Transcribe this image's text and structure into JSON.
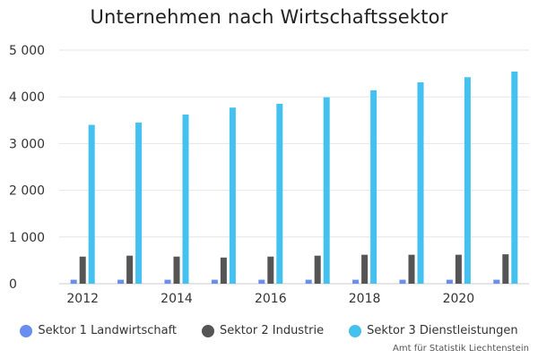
{
  "chart_data": {
    "type": "bar",
    "title": "Unternehmen nach Wirtschaftssektor",
    "xlabel": "",
    "ylabel": "",
    "ylim": [
      0,
      5000
    ],
    "yticks": [
      0,
      1000,
      2000,
      3000,
      4000,
      5000
    ],
    "ytick_labels": [
      "0",
      "1 000",
      "2 000",
      "3 000",
      "4 000",
      "5 000"
    ],
    "categories": [
      "2012",
      "2013",
      "2014",
      "2015",
      "2016",
      "2017",
      "2018",
      "2019",
      "2020",
      "2021"
    ],
    "xtick_labels": [
      "2012",
      "",
      "2014",
      "",
      "2016",
      "",
      "2018",
      "",
      "2020",
      ""
    ],
    "series": [
      {
        "name": "Sektor 1 Landwirtschaft",
        "color": "#6a8ef0",
        "values": [
          85,
          85,
          85,
          85,
          85,
          85,
          85,
          85,
          85,
          85
        ]
      },
      {
        "name": "Sektor 2 Industrie",
        "color": "#555555",
        "values": [
          580,
          600,
          580,
          560,
          580,
          600,
          620,
          620,
          620,
          630
        ]
      },
      {
        "name": "Sektor 3 Dienstleistungen",
        "color": "#45c1ef",
        "values": [
          3400,
          3450,
          3620,
          3770,
          3850,
          3990,
          4140,
          4310,
          4420,
          4540
        ]
      }
    ],
    "grid": true,
    "legend_position": "bottom"
  },
  "source": "Amt für Statistik Liechtenstein"
}
